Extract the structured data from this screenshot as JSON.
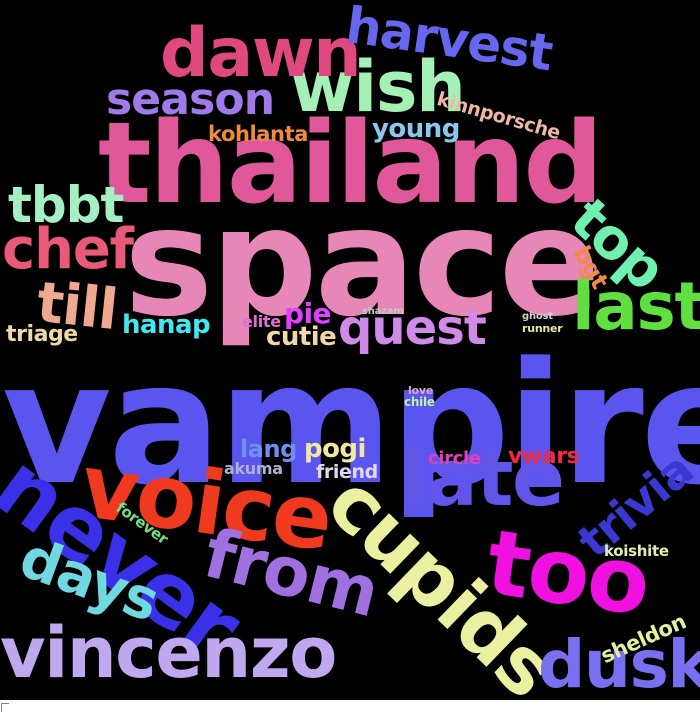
{
  "words": [
    {
      "text": "vampire",
      "color": "#5b55f0"
    },
    {
      "text": "space",
      "color": "#e787b7"
    },
    {
      "text": "thailand",
      "color": "#e0589a"
    },
    {
      "text": "wish",
      "color": "#a5f0b5"
    },
    {
      "text": "dawn",
      "color": "#e04880"
    },
    {
      "text": "harvest",
      "color": "#6666ee"
    },
    {
      "text": "season",
      "color": "#a07ae8"
    },
    {
      "text": "young",
      "color": "#8ac8ee"
    },
    {
      "text": "kinnporsche",
      "color": "#f0b6a6"
    },
    {
      "text": "kohlanta",
      "color": "#f08a40"
    },
    {
      "text": "tbbt",
      "color": "#a5f0c2"
    },
    {
      "text": "chef",
      "color": "#e85a78"
    },
    {
      "text": "till",
      "color": "#f0a890"
    },
    {
      "text": "top",
      "color": "#70f0b0"
    },
    {
      "text": "bgt",
      "color": "#f08a48"
    },
    {
      "text": "last",
      "color": "#60e040"
    },
    {
      "text": "quest",
      "color": "#d08ae8"
    },
    {
      "text": "pie",
      "color": "#e040ff"
    },
    {
      "text": "cutie",
      "color": "#f0d8a8"
    },
    {
      "text": "elite",
      "color": "#e070d0"
    },
    {
      "text": "hanap",
      "color": "#40e8f0"
    },
    {
      "text": "triage",
      "color": "#f0d8a8"
    },
    {
      "text": "shazam",
      "color": "#c8c8c8"
    },
    {
      "text": "ghost",
      "color": "#d0d0d0"
    },
    {
      "text": "runner",
      "color": "#e8e8a0"
    },
    {
      "text": "voice",
      "color": "#f03a20"
    },
    {
      "text": "late",
      "color": "#6055e8"
    },
    {
      "text": "never",
      "color": "#3a30e8"
    },
    {
      "text": "cupids",
      "color": "#eaf0a0"
    },
    {
      "text": "too",
      "color": "#f010e0"
    },
    {
      "text": "from",
      "color": "#a070e0"
    },
    {
      "text": "days",
      "color": "#70d8e0"
    },
    {
      "text": "vincenzo",
      "color": "#c0a8f0"
    },
    {
      "text": "dusk",
      "color": "#7870f0"
    },
    {
      "text": "trivia",
      "color": "#3a38d0"
    },
    {
      "text": "lang",
      "color": "#7090f0"
    },
    {
      "text": "pogi",
      "color": "#f0e8a0"
    },
    {
      "text": "akuma",
      "color": "#b0b0d0"
    },
    {
      "text": "friend",
      "color": "#e0d8f0"
    },
    {
      "text": "circle",
      "color": "#e040b8"
    },
    {
      "text": "vwars",
      "color": "#f02a40"
    },
    {
      "text": "love",
      "color": "#e0a8d0"
    },
    {
      "text": "chile",
      "color": "#c0f0a0"
    },
    {
      "text": "forever",
      "color": "#70e080"
    },
    {
      "text": "koishite",
      "color": "#e0f0b0"
    },
    {
      "text": "sheldon",
      "color": "#e0f0a0"
    }
  ]
}
